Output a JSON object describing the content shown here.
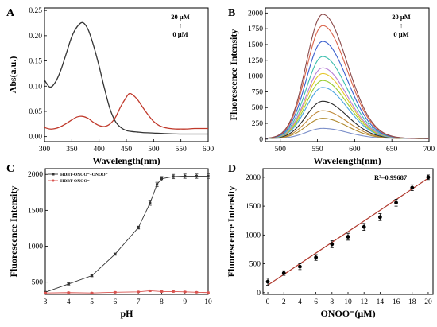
{
  "chart_data": [
    {
      "panel": "A",
      "type": "line",
      "xlabel": "Wavelength(nm)",
      "ylabel": "Abs(a.u.)",
      "xlim": [
        300,
        600
      ],
      "ylim": [
        -0.01,
        0.255
      ],
      "xticks": [
        300,
        350,
        400,
        450,
        500,
        550,
        600
      ],
      "yticks": [
        0.0,
        0.05,
        0.1,
        0.15,
        0.2,
        0.25
      ],
      "ytick_labels": [
        "0.00",
        "0.05",
        "0.10",
        "0.15",
        "0.20",
        "0.25"
      ],
      "annotation": [
        "20 μM",
        "↑",
        "0 μM"
      ],
      "series": [
        {
          "color": "#333333",
          "x": [
            300,
            310,
            320,
            330,
            340,
            350,
            360,
            370,
            380,
            390,
            400,
            410,
            420,
            430,
            440,
            450,
            460,
            470,
            480,
            500,
            520,
            550,
            575,
            600
          ],
          "y": [
            0.112,
            0.098,
            0.108,
            0.132,
            0.165,
            0.198,
            0.218,
            0.226,
            0.212,
            0.18,
            0.14,
            0.095,
            0.055,
            0.03,
            0.018,
            0.012,
            0.01,
            0.009,
            0.008,
            0.007,
            0.006,
            0.005,
            0.005,
            0.005
          ]
        },
        {
          "color": "#c0392b",
          "x": [
            300,
            310,
            320,
            330,
            340,
            350,
            360,
            370,
            380,
            390,
            400,
            410,
            420,
            430,
            440,
            450,
            455,
            460,
            470,
            480,
            490,
            500,
            510,
            520,
            530,
            540,
            550,
            560,
            575,
            590,
            600
          ],
          "y": [
            0.018,
            0.015,
            0.016,
            0.02,
            0.026,
            0.033,
            0.039,
            0.04,
            0.036,
            0.028,
            0.022,
            0.02,
            0.025,
            0.038,
            0.06,
            0.078,
            0.085,
            0.084,
            0.074,
            0.058,
            0.043,
            0.03,
            0.022,
            0.018,
            0.016,
            0.015,
            0.015,
            0.015,
            0.016,
            0.016,
            0.016
          ]
        }
      ]
    },
    {
      "panel": "B",
      "type": "line",
      "xlabel": "Wavelength(nm)",
      "ylabel": "Fluorescence Intensity",
      "xlim": [
        480,
        700
      ],
      "ylim": [
        -40,
        2080
      ],
      "xticks": [
        500,
        550,
        600,
        650,
        700
      ],
      "yticks": [
        0,
        250,
        500,
        750,
        1000,
        1250,
        1500,
        1750,
        2000
      ],
      "annotation": [
        "20 μM",
        "↑",
        "0 μM"
      ],
      "peak_x": 557,
      "series": [
        {
          "color": "#7b8fc9",
          "peak": 170,
          "baseline": 10
        },
        {
          "color": "#b08a2e",
          "peak": 330,
          "baseline": 10
        },
        {
          "color": "#c08a3a",
          "peak": 450,
          "baseline": 10
        },
        {
          "color": "#2b2b2b",
          "peak": 600,
          "baseline": 10
        },
        {
          "color": "#4aa3e0",
          "peak": 820,
          "baseline": 10
        },
        {
          "color": "#9acd32",
          "peak": 930,
          "baseline": 10
        },
        {
          "color": "#e5c72b",
          "peak": 1040,
          "baseline": 10
        },
        {
          "color": "#b77fd6",
          "peak": 1130,
          "baseline": 10
        },
        {
          "color": "#3cbfae",
          "peak": 1310,
          "baseline": 10
        },
        {
          "color": "#3a5fcd",
          "peak": 1550,
          "baseline": 10
        },
        {
          "color": "#d9634a",
          "peak": 1800,
          "baseline": 10
        },
        {
          "color": "#8b4a4a",
          "peak": 1980,
          "baseline": 10
        }
      ]
    },
    {
      "panel": "C",
      "type": "line",
      "xlabel": "pH",
      "ylabel": "Fluorescence Intensity",
      "xlim": [
        3,
        10
      ],
      "ylim": [
        330,
        2080
      ],
      "xticks": [
        3,
        4,
        5,
        6,
        7,
        8,
        9,
        10
      ],
      "yticks": [
        500,
        1000,
        1500,
        2000
      ],
      "legend": [
        "HDBT-ONOO⁻+ONOO⁻",
        "HDBT-ONOO⁻"
      ],
      "series": [
        {
          "name": "HDBT-ONOO⁻+ONOO⁻",
          "color": "#333333",
          "marker": "square",
          "x": [
            3,
            4,
            5,
            6,
            7,
            7.5,
            7.8,
            8,
            8.5,
            9,
            9.5,
            10
          ],
          "y": [
            360,
            475,
            590,
            890,
            1260,
            1600,
            1860,
            1940,
            1970,
            1975,
            1975,
            1975
          ],
          "err": [
            10,
            15,
            15,
            15,
            20,
            30,
            30,
            30,
            30,
            30,
            30,
            30
          ]
        },
        {
          "name": "HDBT-ONOO⁻",
          "color": "#d9534f",
          "marker": "circle",
          "x": [
            3,
            4,
            5,
            6,
            7,
            7.5,
            8,
            8.5,
            9,
            9.5,
            10
          ],
          "y": [
            350,
            355,
            350,
            360,
            365,
            380,
            370,
            370,
            365,
            360,
            355
          ],
          "err": [
            8,
            8,
            8,
            8,
            8,
            12,
            10,
            10,
            8,
            8,
            8
          ]
        }
      ]
    },
    {
      "panel": "D",
      "type": "scatter",
      "xlabel": "ONOO⁻(μM)",
      "ylabel": "Fluorescence Intensity",
      "xlim": [
        -0.6,
        20.6
      ],
      "ylim": [
        -30,
        2150
      ],
      "xticks": [
        0,
        2,
        4,
        6,
        8,
        10,
        12,
        14,
        16,
        18,
        20
      ],
      "yticks": [
        0,
        500,
        1000,
        1500,
        2000
      ],
      "annotation": "R²=0.99687",
      "fit": {
        "color": "#b03a2e",
        "x": [
          0,
          20
        ],
        "y": [
          130,
          1985
        ]
      },
      "series": [
        {
          "color": "#000000",
          "x": [
            0,
            2,
            4,
            6,
            8,
            10,
            12,
            14,
            16,
            18,
            20
          ],
          "y": [
            190,
            340,
            450,
            610,
            840,
            970,
            1140,
            1310,
            1560,
            1820,
            2000
          ],
          "err": [
            60,
            40,
            50,
            50,
            60,
            60,
            60,
            60,
            60,
            50,
            40
          ]
        }
      ]
    }
  ]
}
